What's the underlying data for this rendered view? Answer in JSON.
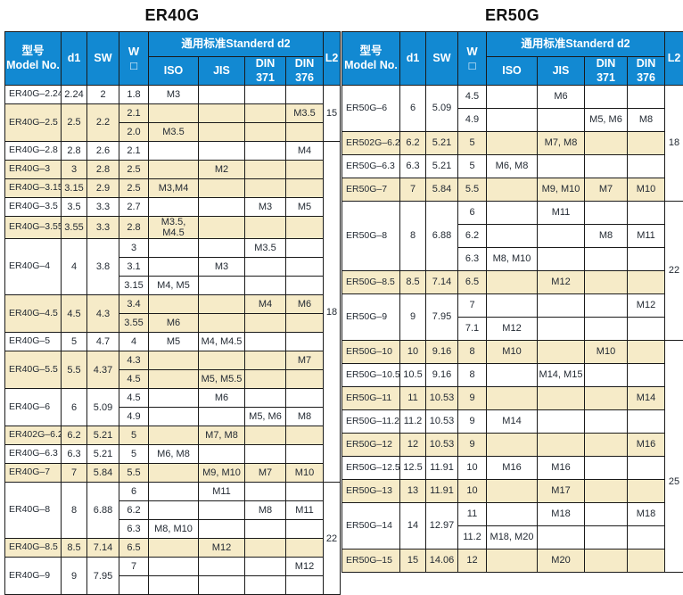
{
  "colors": {
    "header_blue": "#1289d2",
    "row_tan": "#f6ebc8",
    "border": "#1a1a1a",
    "header_text": "#ffffff",
    "body_text": "#232a33"
  },
  "tables": [
    {
      "title": "ER40G",
      "header": {
        "model": "型号\nModel No.",
        "d1": "d1",
        "sw": "SW",
        "w": "W\n□",
        "standard": "通用标准Standerd d2",
        "iso": "ISO",
        "jis": "JIS",
        "din371": "DIN\n371",
        "din376": "DIN\n376",
        "l2": "L2"
      },
      "groups": [
        {
          "model": "ER40G–2.24",
          "d1": "2.24",
          "sw": "2",
          "shaded": false,
          "rows": [
            {
              "w": "1.8",
              "iso": "M3",
              "jis": "",
              "din371": "",
              "din376": ""
            }
          ]
        },
        {
          "model": "ER40G–2.5",
          "d1": "2.5",
          "sw": "2.2",
          "shaded": true,
          "rows": [
            {
              "w": "2.1",
              "iso": "",
              "jis": "",
              "din371": "",
              "din376": "M3.5"
            },
            {
              "w": "2.0",
              "iso": "M3.5",
              "jis": "",
              "din371": "",
              "din376": ""
            }
          ]
        },
        {
          "model": "ER40G–2.8",
          "d1": "2.8",
          "sw": "2.6",
          "shaded": false,
          "rows": [
            {
              "w": "2.1",
              "iso": "",
              "jis": "",
              "din371": "",
              "din376": "M4"
            }
          ]
        },
        {
          "model": "ER40G–3",
          "d1": "3",
          "sw": "2.8",
          "shaded": true,
          "rows": [
            {
              "w": "2.5",
              "iso": "",
              "jis": "M2",
              "din371": "",
              "din376": ""
            }
          ]
        },
        {
          "model": "ER40G–3.15",
          "d1": "3.15",
          "sw": "2.9",
          "shaded": true,
          "rows": [
            {
              "w": "2.5",
              "iso": "M3,M4",
              "jis": "",
              "din371": "",
              "din376": ""
            }
          ]
        },
        {
          "model": "ER40G–3.5",
          "d1": "3.5",
          "sw": "3.3",
          "shaded": false,
          "rows": [
            {
              "w": "2.7",
              "iso": "",
              "jis": "",
              "din371": "M3",
              "din376": "M5"
            }
          ]
        },
        {
          "model": "ER40G–3.55",
          "d1": "3.55",
          "sw": "3.3",
          "shaded": true,
          "rows": [
            {
              "w": "2.8",
              "iso": "M3.5, M4.5",
              "jis": "",
              "din371": "",
              "din376": ""
            }
          ]
        },
        {
          "model": "ER40G–4",
          "d1": "4",
          "sw": "3.8",
          "shaded": false,
          "rows": [
            {
              "w": "3",
              "iso": "",
              "jis": "",
              "din371": "M3.5",
              "din376": ""
            },
            {
              "w": "3.1",
              "iso": "",
              "jis": "M3",
              "din371": "",
              "din376": ""
            },
            {
              "w": "3.15",
              "iso": "M4, M5",
              "jis": "",
              "din371": "",
              "din376": ""
            }
          ]
        },
        {
          "model": "ER40G–4.5",
          "d1": "4.5",
          "sw": "4.3",
          "shaded": true,
          "rows": [
            {
              "w": "3.4",
              "iso": "",
              "jis": "",
              "din371": "M4",
              "din376": "M6"
            },
            {
              "w": "3.55",
              "iso": "M6",
              "jis": "",
              "din371": "",
              "din376": ""
            }
          ]
        },
        {
          "model": "ER40G–5",
          "d1": "5",
          "sw": "4.7",
          "shaded": false,
          "rows": [
            {
              "w": "4",
              "iso": "M5",
              "jis": "M4, M4.5",
              "din371": "",
              "din376": ""
            }
          ]
        },
        {
          "model": "ER40G–5.5",
          "d1": "5.5",
          "sw": "4.37",
          "shaded": true,
          "rows": [
            {
              "w": "4.3",
              "iso": "",
              "jis": "",
              "din371": "",
              "din376": "M7"
            },
            {
              "w": "4.5",
              "iso": "",
              "jis": "M5, M5.5",
              "din371": "",
              "din376": ""
            }
          ]
        },
        {
          "model": "ER40G–6",
          "d1": "6",
          "sw": "5.09",
          "shaded": false,
          "rows": [
            {
              "w": "4.5",
              "iso": "",
              "jis": "M6",
              "din371": "",
              "din376": ""
            },
            {
              "w": "4.9",
              "iso": "",
              "jis": "",
              "din371": "M5, M6",
              "din376": "M8"
            }
          ]
        },
        {
          "model": "ER402G–6.2",
          "d1": "6.2",
          "sw": "5.21",
          "shaded": true,
          "rows": [
            {
              "w": "5",
              "iso": "",
              "jis": "M7, M8",
              "din371": "",
              "din376": ""
            }
          ]
        },
        {
          "model": "ER40G–6.3",
          "d1": "6.3",
          "sw": "5.21",
          "shaded": false,
          "rows": [
            {
              "w": "5",
              "iso": "M6, M8",
              "jis": "",
              "din371": "",
              "din376": ""
            }
          ]
        },
        {
          "model": "ER40G–7",
          "d1": "7",
          "sw": "5.84",
          "shaded": true,
          "rows": [
            {
              "w": "5.5",
              "iso": "",
              "jis": "M9, M10",
              "din371": "M7",
              "din376": "M10"
            }
          ]
        },
        {
          "model": "ER40G–8",
          "d1": "8",
          "sw": "6.88",
          "shaded": false,
          "rows": [
            {
              "w": "6",
              "iso": "",
              "jis": "M11",
              "din371": "",
              "din376": ""
            },
            {
              "w": "6.2",
              "iso": "",
              "jis": "",
              "din371": "M8",
              "din376": "M11"
            },
            {
              "w": "6.3",
              "iso": "M8, M10",
              "jis": "",
              "din371": "",
              "din376": ""
            }
          ]
        },
        {
          "model": "ER40G–8.5",
          "d1": "8.5",
          "sw": "7.14",
          "shaded": true,
          "rows": [
            {
              "w": "6.5",
              "iso": "",
              "jis": "M12",
              "din371": "",
              "din376": ""
            }
          ]
        },
        {
          "model": "ER40G–9",
          "d1": "9",
          "sw": "7.95",
          "shaded": false,
          "rows": [
            {
              "w": "7",
              "iso": "",
              "jis": "",
              "din371": "",
              "din376": "M12"
            },
            {
              "w": "",
              "iso": "",
              "jis": "",
              "din371": "",
              "din376": ""
            }
          ]
        }
      ],
      "l2_spans": [
        {
          "value": "15",
          "rows": 3
        },
        {
          "value": "18",
          "rows": 18
        },
        {
          "value": "22",
          "rows": 6
        }
      ]
    },
    {
      "title": "ER50G",
      "header": {
        "model": "型号\nModel No.",
        "d1": "d1",
        "sw": "SW",
        "w": "W\n□",
        "standard": "通用标准Standerd d2",
        "iso": "ISO",
        "jis": "JIS",
        "din371": "DIN\n371",
        "din376": "DIN\n376",
        "l2": "L2"
      },
      "groups": [
        {
          "model": "ER50G–6",
          "d1": "6",
          "sw": "5.09",
          "shaded": false,
          "rows": [
            {
              "w": "4.5",
              "iso": "",
              "jis": "M6",
              "din371": "",
              "din376": ""
            },
            {
              "w": "4.9",
              "iso": "",
              "jis": "",
              "din371": "M5, M6",
              "din376": "M8"
            }
          ]
        },
        {
          "model": "ER502G–6.2",
          "d1": "6.2",
          "sw": "5.21",
          "shaded": true,
          "rows": [
            {
              "w": "5",
              "iso": "",
              "jis": "M7, M8",
              "din371": "",
              "din376": ""
            }
          ]
        },
        {
          "model": "ER50G–6.3",
          "d1": "6.3",
          "sw": "5.21",
          "shaded": false,
          "rows": [
            {
              "w": "5",
              "iso": "M6, M8",
              "jis": "",
              "din371": "",
              "din376": ""
            }
          ]
        },
        {
          "model": "ER50G–7",
          "d1": "7",
          "sw": "5.84",
          "shaded": true,
          "rows": [
            {
              "w": "5.5",
              "iso": "",
              "jis": "M9, M10",
              "din371": "M7",
              "din376": "M10"
            }
          ]
        },
        {
          "model": "ER50G–8",
          "d1": "8",
          "sw": "6.88",
          "shaded": false,
          "rows": [
            {
              "w": "6",
              "iso": "",
              "jis": "M11",
              "din371": "",
              "din376": ""
            },
            {
              "w": "6.2",
              "iso": "",
              "jis": "",
              "din371": "M8",
              "din376": "M11"
            },
            {
              "w": "6.3",
              "iso": "M8, M10",
              "jis": "",
              "din371": "",
              "din376": ""
            }
          ]
        },
        {
          "model": "ER50G–8.5",
          "d1": "8.5",
          "sw": "7.14",
          "shaded": true,
          "rows": [
            {
              "w": "6.5",
              "iso": "",
              "jis": "M12",
              "din371": "",
              "din376": ""
            }
          ]
        },
        {
          "model": "ER50G–9",
          "d1": "9",
          "sw": "7.95",
          "shaded": false,
          "rows": [
            {
              "w": "7",
              "iso": "",
              "jis": "",
              "din371": "",
              "din376": "M12"
            },
            {
              "w": "7.1",
              "iso": "M12",
              "jis": "",
              "din371": "",
              "din376": ""
            }
          ]
        },
        {
          "model": "ER50G–10",
          "d1": "10",
          "sw": "9.16",
          "shaded": true,
          "rows": [
            {
              "w": "8",
              "iso": "M10",
              "jis": "",
              "din371": "M10",
              "din376": ""
            }
          ]
        },
        {
          "model": "ER50G–10.5",
          "d1": "10.5",
          "sw": "9.16",
          "shaded": false,
          "rows": [
            {
              "w": "8",
              "iso": "",
              "jis": "M14, M15",
              "din371": "",
              "din376": ""
            }
          ]
        },
        {
          "model": "ER50G–11",
          "d1": "11",
          "sw": "10.53",
          "shaded": true,
          "rows": [
            {
              "w": "9",
              "iso": "",
              "jis": "",
              "din371": "",
              "din376": "M14"
            }
          ]
        },
        {
          "model": "ER50G–11.2",
          "d1": "11.2",
          "sw": "10.53",
          "shaded": false,
          "rows": [
            {
              "w": "9",
              "iso": "M14",
              "jis": "",
              "din371": "",
              "din376": ""
            }
          ]
        },
        {
          "model": "ER50G–12",
          "d1": "12",
          "sw": "10.53",
          "shaded": true,
          "rows": [
            {
              "w": "9",
              "iso": "",
              "jis": "",
              "din371": "",
              "din376": "M16"
            }
          ]
        },
        {
          "model": "ER50G–12.5",
          "d1": "12.5",
          "sw": "11.91",
          "shaded": false,
          "rows": [
            {
              "w": "10",
              "iso": "M16",
              "jis": "M16",
              "din371": "",
              "din376": ""
            }
          ]
        },
        {
          "model": "ER50G–13",
          "d1": "13",
          "sw": "11.91",
          "shaded": true,
          "rows": [
            {
              "w": "10",
              "iso": "",
              "jis": "M17",
              "din371": "",
              "din376": ""
            }
          ]
        },
        {
          "model": "ER50G–14",
          "d1": "14",
          "sw": "12.97",
          "shaded": false,
          "rows": [
            {
              "w": "11",
              "iso": "",
              "jis": "M18",
              "din371": "",
              "din376": "M18"
            },
            {
              "w": "11.2",
              "iso": "M18, M20",
              "jis": "",
              "din371": "",
              "din376": ""
            }
          ]
        },
        {
          "model": "ER50G–15",
          "d1": "15",
          "sw": "14.06",
          "shaded": true,
          "rows": [
            {
              "w": "12",
              "iso": "",
              "jis": "M20",
              "din371": "",
              "din376": ""
            }
          ]
        }
      ],
      "l2_spans": [
        {
          "value": "18",
          "rows": 5
        },
        {
          "value": "22",
          "rows": 6
        },
        {
          "value": "25",
          "rows": 10
        }
      ]
    }
  ]
}
